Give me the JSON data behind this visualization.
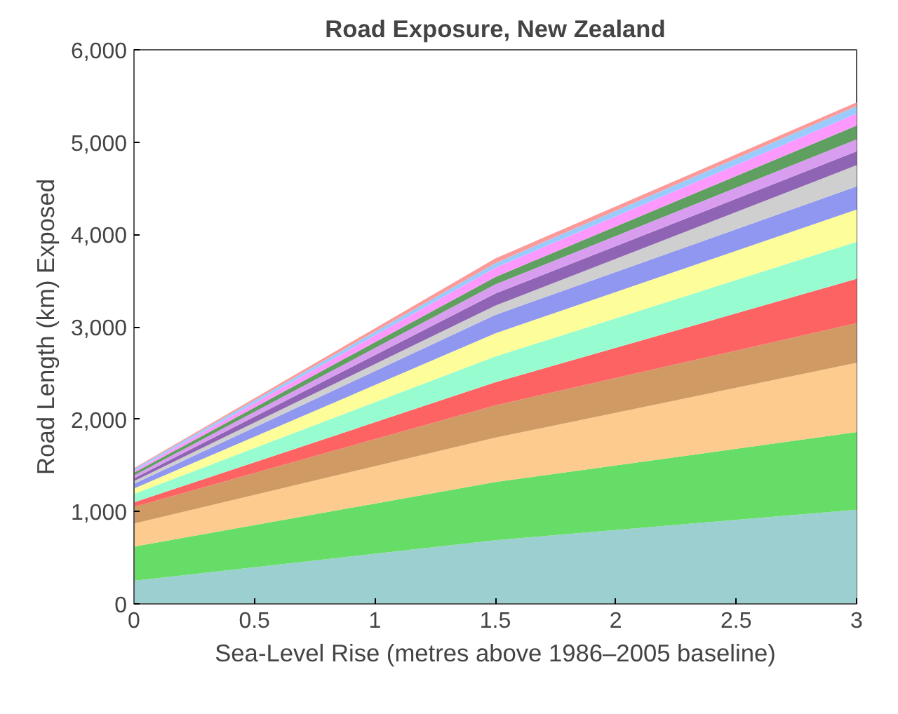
{
  "chart_data": {
    "type": "area",
    "stacked": true,
    "title": "Road Exposure, New Zealand",
    "xlabel": "Sea-Level Rise (metres above 1986–2005 baseline)",
    "ylabel": "Road Length (km) Exposed",
    "x": [
      0,
      1.5,
      3
    ],
    "xlim": [
      0,
      3
    ],
    "xticks": [
      0,
      0.5,
      1,
      1.5,
      2,
      2.5,
      3
    ],
    "ylim": [
      0,
      6000
    ],
    "yticks": [
      {
        "value": 0,
        "label": "0"
      },
      {
        "value": 1000,
        "label": "1,000"
      },
      {
        "value": 2000,
        "label": "2,000"
      },
      {
        "value": 3000,
        "label": "3,000"
      },
      {
        "value": 4000,
        "label": "4,000"
      },
      {
        "value": 5000,
        "label": "5,000"
      },
      {
        "value": 6000,
        "label": "6,000"
      }
    ],
    "grid": false,
    "series": [
      {
        "color": "#9bcfd0",
        "values": [
          250,
          690,
          1020
        ]
      },
      {
        "color": "#66dd66",
        "values": [
          370,
          630,
          840
        ]
      },
      {
        "color": "#fdcb8d",
        "values": [
          250,
          480,
          750
        ]
      },
      {
        "color": "#d09a64",
        "values": [
          180,
          350,
          430
        ]
      },
      {
        "color": "#fe6363",
        "values": [
          50,
          250,
          480
        ]
      },
      {
        "color": "#97fdd0",
        "values": [
          90,
          280,
          400
        ]
      },
      {
        "color": "#fdfd99",
        "values": [
          60,
          250,
          350
        ]
      },
      {
        "color": "#8f97f0",
        "values": [
          50,
          200,
          250
        ]
      },
      {
        "color": "#cfcfcf",
        "values": [
          30,
          100,
          230
        ]
      },
      {
        "color": "#8f64b4",
        "values": [
          30,
          130,
          150
        ]
      },
      {
        "color": "#d99df0",
        "values": [
          30,
          100,
          130
        ]
      },
      {
        "color": "#5fa060",
        "values": [
          30,
          80,
          150
        ]
      },
      {
        "color": "#fd99fd",
        "values": [
          20,
          100,
          130
        ]
      },
      {
        "color": "#99ccfd",
        "values": [
          20,
          50,
          80
        ]
      },
      {
        "color": "#fc9a9a",
        "values": [
          10,
          50,
          40
        ]
      }
    ]
  }
}
